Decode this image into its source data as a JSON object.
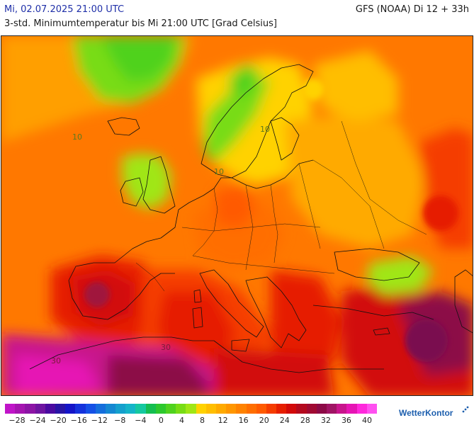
{
  "header": {
    "date": "Mi, 02.07.2025 21:00 UTC",
    "subtitle": "3-std. Minimumtemperatur bis Mi 21:00 UTC [Grad Celsius]",
    "model": "GFS (NOAA) Di 12 + 33h"
  },
  "map": {
    "contour_labels": [
      "10",
      "10",
      "10",
      "30",
      "30"
    ]
  },
  "legend": {
    "colors": [
      "#c014c8",
      "#a514b0",
      "#8c14a5",
      "#6e14a0",
      "#4a0aa0",
      "#2814a5",
      "#1414c8",
      "#1432dc",
      "#1450e6",
      "#146edc",
      "#1488d2",
      "#14a0cd",
      "#14b4c8",
      "#14c8a0",
      "#14be50",
      "#2dc82d",
      "#50d21e",
      "#78dc14",
      "#a0e614",
      "#ffd200",
      "#ffbe00",
      "#ffaa00",
      "#ff9600",
      "#ff8200",
      "#ff6e00",
      "#ff5a00",
      "#f53c00",
      "#e61e00",
      "#d20a0a",
      "#b40a1e",
      "#a00a32",
      "#8c0a46",
      "#a01464",
      "#c8148c",
      "#e614b4",
      "#ff28dc",
      "#ff50f0"
    ],
    "ticks": [
      "−28",
      "−24",
      "−20",
      "−16",
      "−12",
      "−8",
      "−4",
      "0",
      "4",
      "8",
      "12",
      "16",
      "20",
      "24",
      "28",
      "32",
      "36",
      "40"
    ]
  },
  "logo": {
    "text_main": "Wetter",
    "text_accent": "Kontor"
  }
}
